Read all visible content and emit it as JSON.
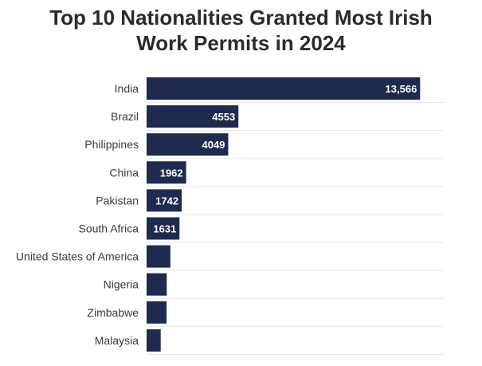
{
  "chart_data": {
    "type": "bar",
    "orientation": "horizontal",
    "title_lines": [
      "Top 10 Nationalities Granted Most Irish",
      "Work Permits in 2024"
    ],
    "categories": [
      "India",
      "Brazil",
      "Philippines",
      "China",
      "Pakistan",
      "South Africa",
      "United States of America",
      "Nigeria",
      "Zimbabwe",
      "Malaysia"
    ],
    "values": [
      13566,
      4553,
      4049,
      1962,
      1742,
      1631,
      1180,
      1000,
      990,
      700
    ],
    "value_labels": [
      "13,566",
      "4553",
      "4049",
      "1962",
      "1742",
      "1631",
      "",
      "",
      "",
      ""
    ],
    "bar_color": "#1f2a4f",
    "label_color": "#ffffff",
    "grid": true,
    "legend": "none",
    "xlim": [
      0,
      14700
    ]
  }
}
